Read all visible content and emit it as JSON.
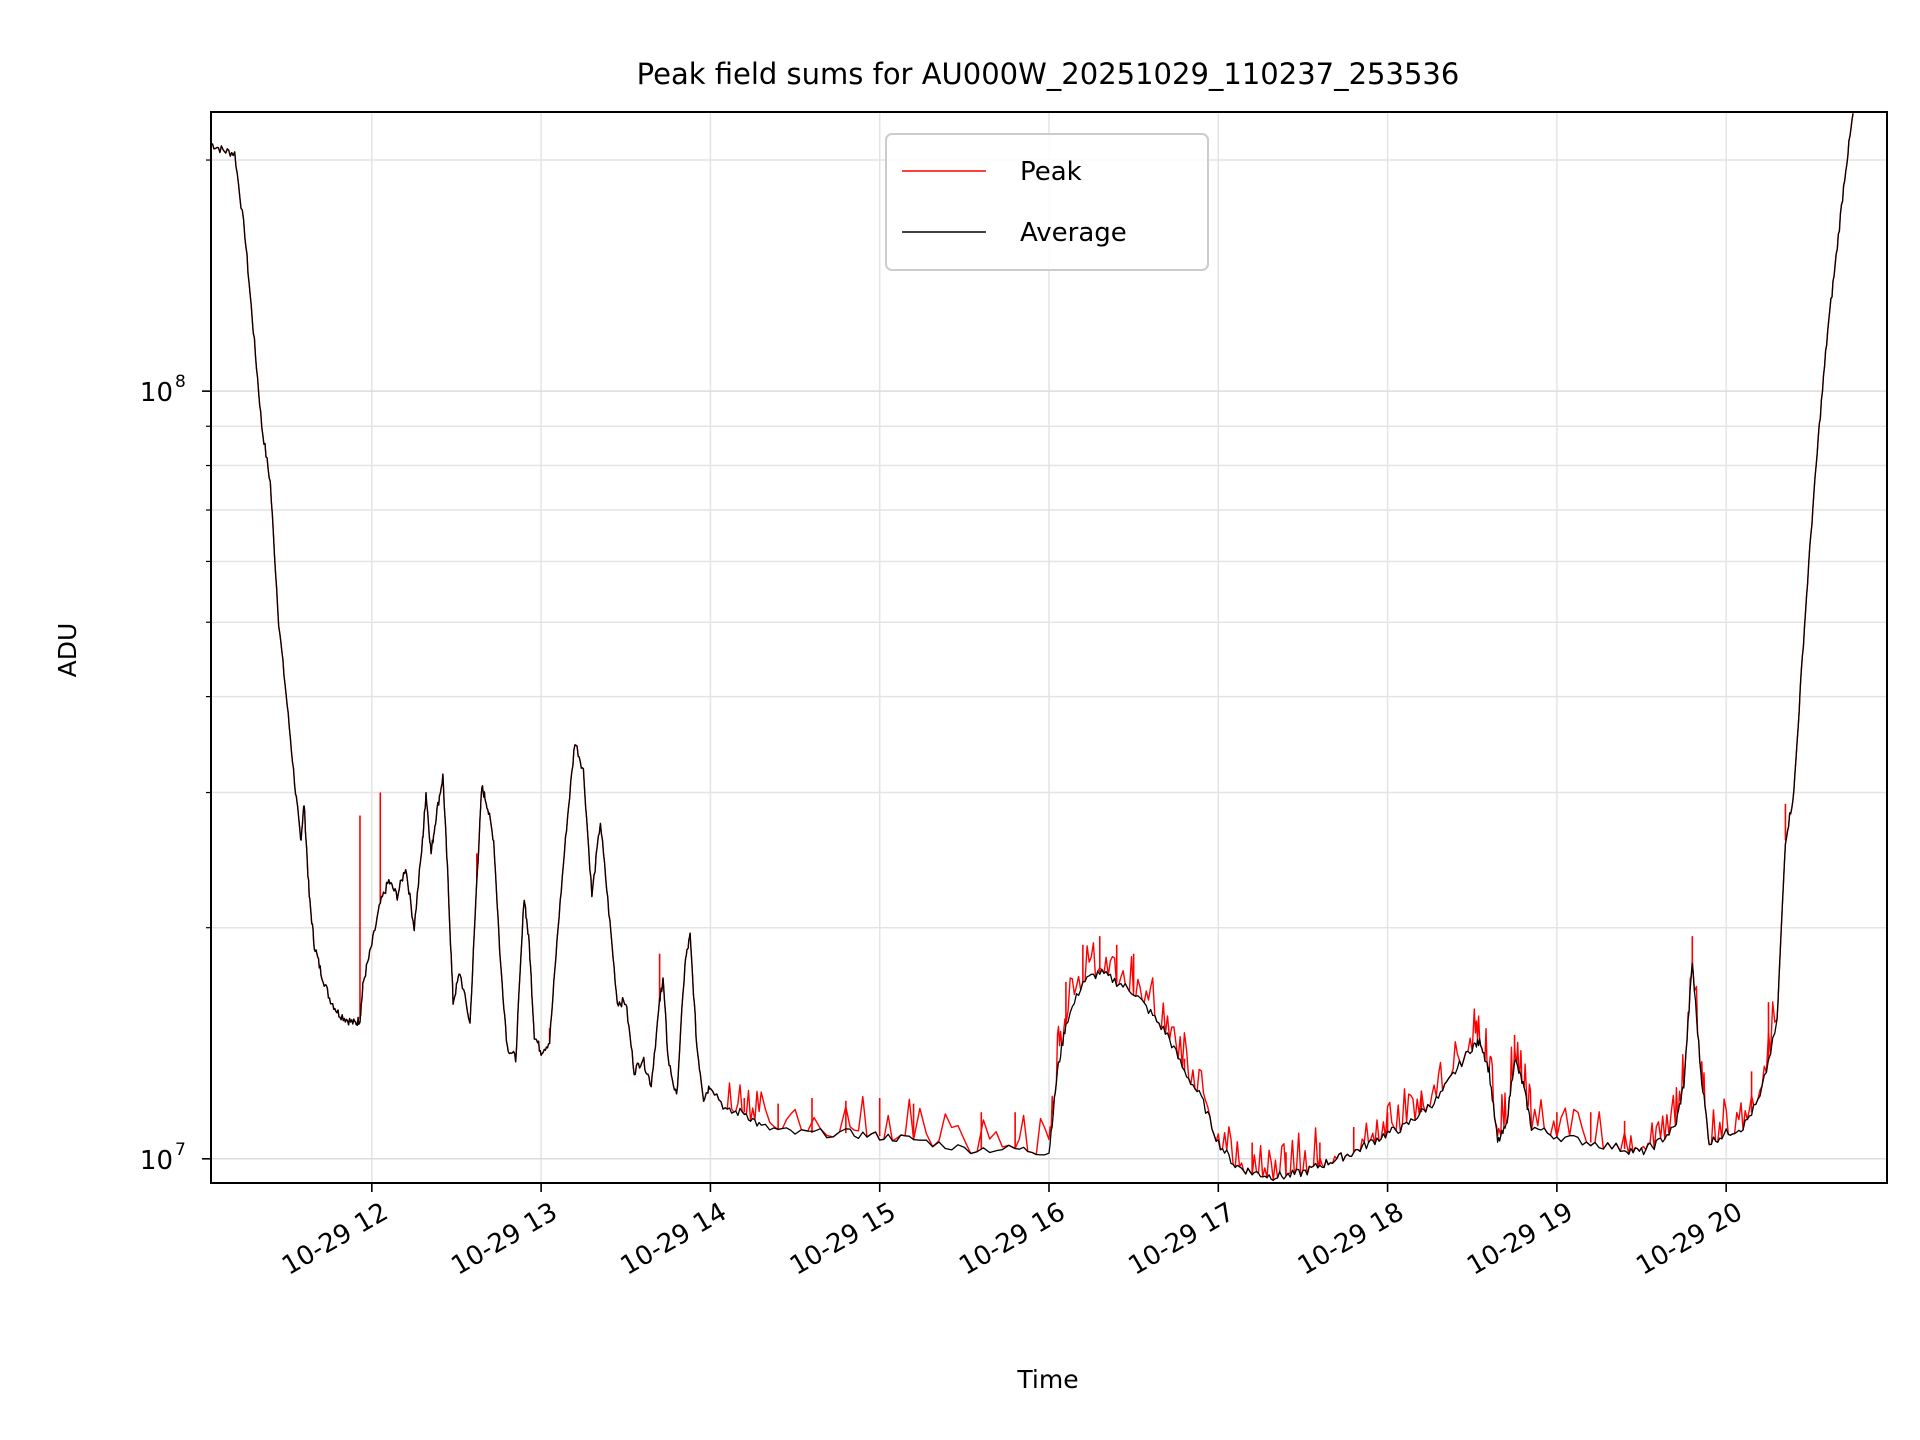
{
  "chart_data": {
    "type": "line",
    "title": "Peak field sums for AU000W_20251029_110237_253536",
    "xlabel": "Time",
    "ylabel": "ADU",
    "yscale": "log",
    "x_unit": "hours since 10-29 00:00",
    "xlim": [
      11.05,
      20.95
    ],
    "ylim": [
      9300000,
      231000000
    ],
    "x_ticks": [
      {
        "value": 12,
        "label": "10-29 12"
      },
      {
        "value": 13,
        "label": "10-29 13"
      },
      {
        "value": 14,
        "label": "10-29 14"
      },
      {
        "value": 15,
        "label": "10-29 15"
      },
      {
        "value": 16,
        "label": "10-29 16"
      },
      {
        "value": 17,
        "label": "10-29 17"
      },
      {
        "value": 18,
        "label": "10-29 18"
      },
      {
        "value": 19,
        "label": "10-29 19"
      },
      {
        "value": 20,
        "label": "10-29 20"
      }
    ],
    "y_major_ticks": [
      {
        "value": 10000000,
        "base": "10",
        "exp": "7"
      },
      {
        "value": 100000000,
        "base": "10",
        "exp": "8"
      }
    ],
    "y_minor_ticks": [
      20000000,
      30000000,
      40000000,
      50000000,
      60000000,
      70000000,
      80000000,
      90000000,
      200000000
    ],
    "grid": true,
    "legend_position": "top-center",
    "series": [
      {
        "name": "Peak",
        "color": "#ff0000"
      },
      {
        "name": "Average",
        "color": "#000000"
      }
    ],
    "average_points": [
      [
        11.05,
        210000000.0
      ],
      [
        11.12,
        206000000.0
      ],
      [
        11.19,
        204000000.0
      ],
      [
        11.25,
        160000000.0
      ],
      [
        11.3,
        120000000.0
      ],
      [
        11.35,
        90000000.0
      ],
      [
        11.4,
        76000000.0
      ],
      [
        11.45,
        50000000.0
      ],
      [
        11.5,
        39000000.0
      ],
      [
        11.55,
        30000000.0
      ],
      [
        11.58,
        26000000.0
      ],
      [
        11.6,
        29000000.0
      ],
      [
        11.63,
        22000000.0
      ],
      [
        11.66,
        19000000.0
      ],
      [
        11.7,
        17500000.0
      ],
      [
        11.75,
        16200000.0
      ],
      [
        11.8,
        15500000.0
      ],
      [
        11.85,
        15200000.0
      ],
      [
        11.9,
        15000000.0
      ],
      [
        11.93,
        15200000.0
      ],
      [
        11.95,
        17000000.0
      ],
      [
        12.0,
        19000000.0
      ],
      [
        12.05,
        21500000.0
      ],
      [
        12.1,
        23000000.0
      ],
      [
        12.15,
        22000000.0
      ],
      [
        12.2,
        24000000.0
      ],
      [
        12.25,
        20000000.0
      ],
      [
        12.3,
        26000000.0
      ],
      [
        12.32,
        30000000.0
      ],
      [
        12.35,
        25000000.0
      ],
      [
        12.38,
        28000000.0
      ],
      [
        12.42,
        31500000.0
      ],
      [
        12.45,
        23000000.0
      ],
      [
        12.48,
        16000000.0
      ],
      [
        12.52,
        17500000.0
      ],
      [
        12.58,
        15000000.0
      ],
      [
        12.62,
        23000000.0
      ],
      [
        12.65,
        30500000.0
      ],
      [
        12.68,
        29000000.0
      ],
      [
        12.72,
        26000000.0
      ],
      [
        12.76,
        18000000.0
      ],
      [
        12.8,
        14000000.0
      ],
      [
        12.85,
        13500000.0
      ],
      [
        12.9,
        22000000.0
      ],
      [
        12.93,
        19000000.0
      ],
      [
        12.96,
        14500000.0
      ],
      [
        13.0,
        13800000.0
      ],
      [
        13.05,
        14200000.0
      ],
      [
        13.1,
        20000000.0
      ],
      [
        13.15,
        27000000.0
      ],
      [
        13.2,
        35000000.0
      ],
      [
        13.25,
        32000000.0
      ],
      [
        13.3,
        22000000.0
      ],
      [
        13.35,
        27500000.0
      ],
      [
        13.4,
        21000000.0
      ],
      [
        13.45,
        16000000.0
      ],
      [
        13.5,
        16000000.0
      ],
      [
        13.55,
        13000000.0
      ],
      [
        13.6,
        13500000.0
      ],
      [
        13.65,
        12500000.0
      ],
      [
        13.7,
        16000000.0
      ],
      [
        13.72,
        17200000.0
      ],
      [
        13.75,
        13500000.0
      ],
      [
        13.8,
        12000000.0
      ],
      [
        13.85,
        18000000.0
      ],
      [
        13.88,
        19500000.0
      ],
      [
        13.92,
        14000000.0
      ],
      [
        13.96,
        12000000.0
      ],
      [
        14.0,
        12500000.0
      ],
      [
        14.1,
        11500000.0
      ],
      [
        14.2,
        11500000.0
      ],
      [
        14.3,
        11000000.0
      ],
      [
        14.5,
        10800000.0
      ],
      [
        14.8,
        10800000.0
      ],
      [
        15.0,
        10700000.0
      ],
      [
        15.2,
        10600000.0
      ],
      [
        15.5,
        10300000.0
      ],
      [
        15.8,
        10300000.0
      ],
      [
        16.0,
        10200000.0
      ],
      [
        16.05,
        13000000.0
      ],
      [
        16.1,
        15000000.0
      ],
      [
        16.2,
        17000000.0
      ],
      [
        16.3,
        17500000.0
      ],
      [
        16.4,
        17000000.0
      ],
      [
        16.5,
        16500000.0
      ],
      [
        16.6,
        15500000.0
      ],
      [
        16.7,
        14500000.0
      ],
      [
        16.8,
        13000000.0
      ],
      [
        16.9,
        12000000.0
      ],
      [
        17.0,
        10500000.0
      ],
      [
        17.1,
        9800000.0
      ],
      [
        17.2,
        9600000.0
      ],
      [
        17.3,
        9500000.0
      ],
      [
        17.4,
        9500000.0
      ],
      [
        17.5,
        9600000.0
      ],
      [
        17.6,
        9800000.0
      ],
      [
        17.7,
        10000000.0
      ],
      [
        17.8,
        10200000.0
      ],
      [
        17.9,
        10500000.0
      ],
      [
        18.0,
        10800000.0
      ],
      [
        18.1,
        11000000.0
      ],
      [
        18.2,
        11500000.0
      ],
      [
        18.3,
        12000000.0
      ],
      [
        18.4,
        13000000.0
      ],
      [
        18.5,
        14000000.0
      ],
      [
        18.55,
        14200000.0
      ],
      [
        18.6,
        13000000.0
      ],
      [
        18.65,
        10500000.0
      ],
      [
        18.7,
        11000000.0
      ],
      [
        18.75,
        13500000.0
      ],
      [
        18.8,
        12500000.0
      ],
      [
        18.85,
        11000000.0
      ],
      [
        19.0,
        10700000.0
      ],
      [
        19.2,
        10500000.0
      ],
      [
        19.4,
        10300000.0
      ],
      [
        19.5,
        10200000.0
      ],
      [
        19.6,
        10500000.0
      ],
      [
        19.7,
        11000000.0
      ],
      [
        19.75,
        12500000.0
      ],
      [
        19.8,
        18000000.0
      ],
      [
        19.85,
        13000000.0
      ],
      [
        19.9,
        10500000.0
      ],
      [
        20.0,
        10800000.0
      ],
      [
        20.1,
        11000000.0
      ],
      [
        20.2,
        12000000.0
      ],
      [
        20.3,
        15000000.0
      ],
      [
        20.35,
        26000000.0
      ],
      [
        20.4,
        30000000.0
      ],
      [
        20.45,
        45000000.0
      ],
      [
        20.5,
        65000000.0
      ],
      [
        20.55,
        90000000.0
      ],
      [
        20.6,
        120000000.0
      ],
      [
        20.65,
        150000000.0
      ],
      [
        20.7,
        190000000.0
      ],
      [
        20.75,
        230000000.0
      ]
    ],
    "peak_spikes": [
      [
        11.93,
        28000000.0
      ],
      [
        12.05,
        30000000.0
      ],
      [
        12.62,
        25000000.0
      ],
      [
        13.05,
        14800000.0
      ],
      [
        13.7,
        18500000.0
      ],
      [
        14.2,
        12000000.0
      ],
      [
        14.4,
        11800000.0
      ],
      [
        14.6,
        12000000.0
      ],
      [
        14.8,
        11900000.0
      ],
      [
        15.0,
        12000000.0
      ],
      [
        15.2,
        11800000.0
      ],
      [
        15.6,
        11500000.0
      ],
      [
        15.8,
        11500000.0
      ],
      [
        16.1,
        17000000.0
      ],
      [
        16.2,
        19000000.0
      ],
      [
        16.3,
        19500000.0
      ],
      [
        16.4,
        19000000.0
      ],
      [
        16.5,
        18500000.0
      ],
      [
        16.8,
        13500000.0
      ],
      [
        17.2,
        10500000.0
      ],
      [
        17.4,
        10200000.0
      ],
      [
        17.6,
        10500000.0
      ],
      [
        17.8,
        11000000.0
      ],
      [
        18.0,
        11500000.0
      ],
      [
        18.2,
        12000000.0
      ],
      [
        18.75,
        14500000.0
      ],
      [
        19.0,
        11500000.0
      ],
      [
        19.2,
        11500000.0
      ],
      [
        19.4,
        11200000.0
      ],
      [
        19.8,
        19500000.0
      ],
      [
        20.15,
        13000000.0
      ],
      [
        20.25,
        16000000.0
      ],
      [
        20.35,
        29000000.0
      ]
    ]
  }
}
